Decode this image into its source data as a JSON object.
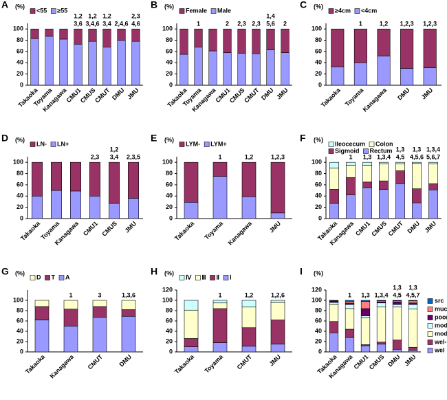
{
  "chart_data": [
    {
      "type": "bar",
      "panel": "A",
      "ylabel": "(%)",
      "legend": "top-left",
      "categories": [
        "Takaoka",
        "Toyama",
        "Kanagawa",
        "CMU1",
        "CMUS",
        "CMUT",
        "DMU",
        "JMU"
      ],
      "series": [
        {
          "name": "<55",
          "color": "#993366",
          "values": [
            17,
            13,
            18,
            27,
            22,
            32,
            20,
            22
          ]
        },
        {
          "name": "≥55",
          "color": "#9999ff",
          "values": [
            83,
            87,
            82,
            73,
            78,
            68,
            80,
            78
          ]
        }
      ],
      "annotations": [
        null,
        null,
        null,
        [
          "1,2",
          "3,6"
        ],
        [
          "1,2",
          "3,4,6"
        ],
        [
          "1,2",
          "3,4"
        ],
        [
          "2,4,6"
        ],
        [
          "2,3",
          "4,6"
        ]
      ],
      "ylim": [
        0,
        110
      ],
      "yticks": [
        0,
        20,
        40,
        60,
        80,
        100
      ]
    },
    {
      "type": "bar",
      "panel": "B",
      "ylabel": "(%)",
      "legend": "top-left",
      "categories": [
        "Takaoka",
        "Toyama",
        "Kanagawa",
        "CMU1",
        "CMUS",
        "CMUT",
        "DMU",
        "JMU"
      ],
      "series": [
        {
          "name": "Female",
          "color": "#993366",
          "values": [
            45,
            32,
            39,
            42,
            43,
            44,
            37,
            42
          ]
        },
        {
          "name": "Male",
          "color": "#9999ff",
          "values": [
            55,
            68,
            61,
            58,
            57,
            56,
            63,
            58
          ]
        }
      ],
      "annotations": [
        null,
        [
          "1"
        ],
        null,
        [
          "2"
        ],
        [
          "2,3"
        ],
        [
          "2,3"
        ],
        [
          "1,4",
          "5,6"
        ],
        [
          "2"
        ]
      ],
      "ylim": [
        0,
        110
      ],
      "yticks": [
        0,
        20,
        40,
        60,
        80,
        100
      ]
    },
    {
      "type": "bar",
      "panel": "C",
      "ylabel": "(%)",
      "legend": "top-left",
      "categories": [
        "Takaoka",
        "Toyama",
        "Kanagawa",
        "DMU",
        "JMU"
      ],
      "series": [
        {
          "name": "≥4cm",
          "color": "#993366",
          "values": [
            67,
            60,
            48,
            70,
            69
          ]
        },
        {
          "name": "<4cm",
          "color": "#9999ff",
          "values": [
            33,
            40,
            52,
            30,
            31
          ]
        }
      ],
      "annotations": [
        null,
        [
          "1"
        ],
        [
          "1,2"
        ],
        [
          "1,2,3"
        ],
        [
          "1,2,3"
        ]
      ],
      "ylim": [
        0,
        110
      ],
      "yticks": [
        0,
        20,
        40,
        60,
        80,
        100
      ]
    },
    {
      "type": "bar",
      "panel": "D",
      "ylabel": "(%)",
      "legend": "top-left",
      "categories": [
        "Takaoka",
        "Toyama",
        "Kanagawa",
        "CMU1",
        "CMUS",
        "JMU"
      ],
      "series": [
        {
          "name": "LN-",
          "color": "#993366",
          "values": [
            60,
            50,
            51,
            60,
            73,
            64
          ]
        },
        {
          "name": "LN+",
          "color": "#9999ff",
          "values": [
            40,
            50,
            49,
            40,
            27,
            36
          ]
        }
      ],
      "annotations": [
        null,
        null,
        null,
        [
          "2,3"
        ],
        [
          "1,2",
          "3,4"
        ],
        [
          "2,3,5"
        ]
      ],
      "ylim": [
        0,
        110
      ],
      "yticks": [
        0,
        20,
        40,
        60,
        80,
        100
      ]
    },
    {
      "type": "bar",
      "panel": "E",
      "ylabel": "(%)",
      "legend": "top-left",
      "categories": [
        "Takaoka",
        "Toyama",
        "Kanagawa",
        "JMU"
      ],
      "series": [
        {
          "name": "LYM-",
          "color": "#993366",
          "values": [
            71,
            25,
            61,
            90
          ]
        },
        {
          "name": "LYM+",
          "color": "#9999ff",
          "values": [
            29,
            75,
            39,
            10
          ]
        }
      ],
      "annotations": [
        null,
        [
          "1"
        ],
        [
          "1,2"
        ],
        [
          "1,2,3"
        ]
      ],
      "ylim": [
        0,
        110
      ],
      "yticks": [
        0,
        20,
        40,
        60,
        80,
        100
      ]
    },
    {
      "type": "bar",
      "panel": "F",
      "ylabel": "(%)",
      "legend": "top-left",
      "categories": [
        "Takaoka",
        "Kanagawa",
        "CMU1",
        "CMUS",
        "CMUT",
        "DMU",
        "JMU"
      ],
      "series": [
        {
          "name": "Ileocecum",
          "color": "#ccffff",
          "values": [
            10,
            5,
            5,
            3,
            3,
            2,
            3
          ]
        },
        {
          "name": "Colon",
          "color": "#ffffcc",
          "values": [
            38,
            22,
            30,
            30,
            12,
            45,
            35
          ]
        },
        {
          "name": "Sigmoid",
          "color": "#993366",
          "values": [
            25,
            31,
            10,
            15,
            23,
            25,
            11
          ]
        },
        {
          "name": "Rectum",
          "color": "#9999ff",
          "values": [
            27,
            42,
            55,
            52,
            62,
            28,
            51
          ]
        }
      ],
      "annotations": [
        null,
        [
          "1"
        ],
        [
          "1,3"
        ],
        [
          "1,3,4"
        ],
        [
          "1,3",
          "4,5"
        ],
        [
          "1,3",
          "4,5,6"
        ],
        [
          "1,3,4",
          "5,6,7"
        ]
      ],
      "ylim": [
        0,
        110
      ],
      "yticks": [
        0,
        20,
        40,
        60,
        80,
        100
      ]
    },
    {
      "type": "bar",
      "panel": "G",
      "ylabel": "(%)",
      "legend": "top-left",
      "categories": [
        "Takaoka",
        "Kanagawa",
        "CMUT",
        "DMU"
      ],
      "series": [
        {
          "name": "D",
          "color": "#ffffcc",
          "values": [
            12,
            17,
            12,
            18
          ]
        },
        {
          "name": "T",
          "color": "#993366",
          "values": [
            26,
            33,
            21,
            13
          ]
        },
        {
          "name": "A",
          "color": "#9999ff",
          "values": [
            62,
            50,
            67,
            69
          ]
        }
      ],
      "annotations": [
        null,
        [
          "1"
        ],
        [
          "3"
        ],
        [
          "1,3,6"
        ]
      ],
      "ylim": [
        0,
        120
      ],
      "yticks": [
        0,
        20,
        40,
        60,
        80,
        100
      ]
    },
    {
      "type": "bar",
      "panel": "H",
      "ylabel": "(%)",
      "legend": "top-left",
      "categories": [
        "Takaoka",
        "Toyama",
        "CMUT",
        "JMU"
      ],
      "series": [
        {
          "name": "Ⅳ",
          "color": "#ccffff",
          "values": [
            19,
            5,
            13,
            4
          ]
        },
        {
          "name": "Ⅲ",
          "color": "#ffffcc",
          "values": [
            55,
            11,
            40,
            34
          ]
        },
        {
          "name": "Ⅱ",
          "color": "#993366",
          "values": [
            16,
            66,
            36,
            47
          ]
        },
        {
          "name": "Ⅰ",
          "color": "#9999ff",
          "values": [
            10,
            18,
            11,
            15
          ]
        }
      ],
      "annotations": [
        null,
        [
          "1"
        ],
        [
          "1,2"
        ],
        [
          "1,2,6"
        ]
      ],
      "ylim": [
        0,
        120
      ],
      "yticks": [
        0,
        20,
        40,
        60,
        80,
        100,
        120
      ]
    },
    {
      "type": "bar",
      "panel": "I",
      "ylabel": "(%)",
      "legend": "right",
      "categories": [
        "Takaoka",
        "Kanagawa",
        "CMU1",
        "CMUS",
        "DMU",
        "JMU"
      ],
      "series": [
        {
          "name": "src",
          "color": "#0066cc",
          "values": [
            1,
            3,
            2,
            1,
            1,
            1
          ]
        },
        {
          "name": "muc",
          "color": "#ff8080",
          "values": [
            1,
            3,
            14,
            2,
            2,
            4
          ]
        },
        {
          "name": "poor",
          "color": "#660066",
          "values": [
            2,
            2,
            14,
            2,
            5,
            3
          ]
        },
        {
          "name": "mod-por",
          "color": "#ccffff",
          "values": [
            4,
            8,
            4,
            8,
            5,
            9
          ]
        },
        {
          "name": "mod",
          "color": "#ffffcc",
          "values": [
            33,
            40,
            52,
            68,
            64,
            74
          ]
        },
        {
          "name": "wel-mod",
          "color": "#993366",
          "values": [
            22,
            16,
            2,
            4,
            18,
            6
          ]
        },
        {
          "name": "wel",
          "color": "#9999ff",
          "values": [
            37,
            28,
            12,
            15,
            5,
            3
          ]
        }
      ],
      "annotations": [
        null,
        [
          "1"
        ],
        [
          "1,3"
        ],
        [
          "1,3,4"
        ],
        [
          "1,3",
          "4,5"
        ],
        [
          "1,3",
          "4,5,7"
        ]
      ],
      "ylim": [
        0,
        120
      ],
      "yticks": [
        0,
        20,
        40,
        60,
        80,
        100,
        120
      ]
    }
  ]
}
